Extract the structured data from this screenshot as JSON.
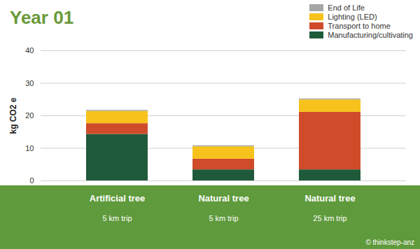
{
  "chart_data": {
    "type": "bar",
    "title": "Year 01",
    "y_label": "kg CO2 e",
    "categories": [
      "Artificial tree",
      "Natural tree",
      "Natural tree"
    ],
    "annotations": [
      "5 km trip",
      "5 km trip",
      "25 km trip"
    ],
    "source": "© thinkstep-anz",
    "series": [
      {
        "name": "End of Life",
        "color": "#a6a6a6",
        "values": [
          0.3,
          0.3,
          0.3
        ]
      },
      {
        "name": "Lighting (LED)",
        "color": "#f7c21c",
        "values": [
          3.8,
          3.8,
          3.8
        ]
      },
      {
        "name": "Transport to home",
        "color": "#cf4b2a",
        "values": [
          3.3,
          3.3,
          17.7
        ]
      },
      {
        "name": "Manufacturing/cultivating",
        "color": "#1f5a3a",
        "values": [
          14.3,
          3.4,
          3.4
        ]
      }
    ],
    "stacked": true,
    "ylim": [
      0,
      40
    ],
    "yticks": [
      0,
      10,
      20,
      30,
      40
    ],
    "grid": true,
    "legend": "top-right"
  }
}
